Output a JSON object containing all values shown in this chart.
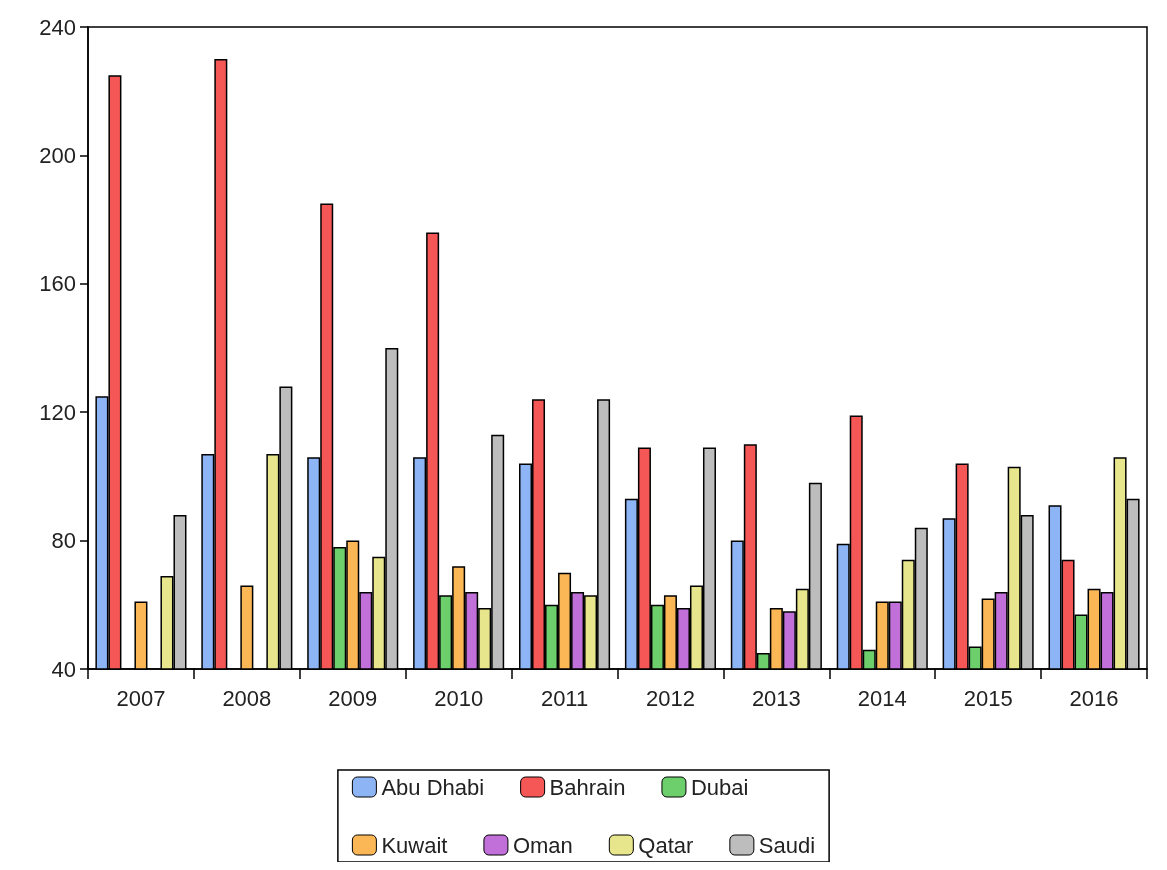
{
  "chart_data": {
    "type": "bar",
    "categories": [
      "2007",
      "2008",
      "2009",
      "2010",
      "2011",
      "2012",
      "2013",
      "2014",
      "2015",
      "2016"
    ],
    "series": [
      {
        "name": "Abu Dhabi",
        "color": "#8db4f5",
        "values": [
          125,
          107,
          106,
          106,
          104,
          93,
          80,
          79,
          87,
          91
        ]
      },
      {
        "name": "Bahrain",
        "color": "#f55656",
        "values": [
          225,
          230,
          185,
          176,
          124,
          109,
          110,
          119,
          104,
          74
        ]
      },
      {
        "name": "Dubai",
        "color": "#6ccf6c",
        "values": [
          null,
          null,
          78,
          63,
          60,
          60,
          45,
          46,
          47,
          57
        ]
      },
      {
        "name": "Kuwait",
        "color": "#fbb655",
        "values": [
          61,
          66,
          80,
          72,
          70,
          63,
          59,
          61,
          62,
          65
        ]
      },
      {
        "name": "Oman",
        "color": "#c070d8",
        "values": [
          null,
          null,
          64,
          64,
          64,
          59,
          58,
          61,
          64,
          64
        ]
      },
      {
        "name": "Qatar",
        "color": "#e8e68c",
        "values": [
          69,
          107,
          75,
          59,
          63,
          66,
          65,
          74,
          103,
          106
        ]
      },
      {
        "name": "Saudi",
        "color": "#bdbdbd",
        "values": [
          88,
          128,
          140,
          113,
          124,
          109,
          98,
          84,
          88,
          93
        ]
      }
    ],
    "ylim": [
      40,
      240
    ],
    "yticks": [
      40,
      80,
      120,
      160,
      200,
      240
    ],
    "grid": false,
    "legend": "bottom"
  }
}
